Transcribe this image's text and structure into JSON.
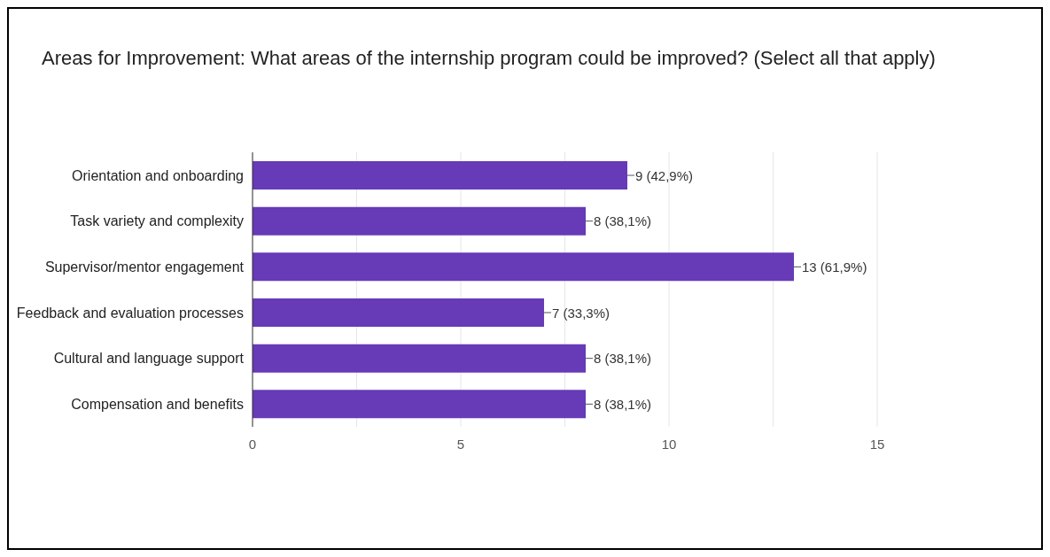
{
  "chart_data": {
    "type": "bar",
    "orientation": "horizontal",
    "title": "Areas for Improvement: What areas of the internship program could be improved? (Select all that apply)",
    "categories": [
      "Orientation and onboarding",
      "Task variety and complexity",
      "Supervisor/mentor engagement",
      "Feedback and evaluation processes",
      "Cultural and language support",
      "Compensation and benefits"
    ],
    "values": [
      9,
      8,
      13,
      7,
      8,
      8
    ],
    "value_labels": [
      "9 (42,9%)",
      "8 (38,1%)",
      "13 (61,9%)",
      "7 (33,3%)",
      "8 (38,1%)",
      "8 (38,1%)"
    ],
    "color": "#673ab7",
    "xlim": [
      0,
      15
    ],
    "xticks": [
      0,
      {
        "value": 2.5,
        "label": null
      },
      5,
      {
        "value": 7.5,
        "label": null
      },
      10,
      {
        "value": 12.5,
        "label": null
      },
      15
    ],
    "grid": "x",
    "legend": false
  }
}
